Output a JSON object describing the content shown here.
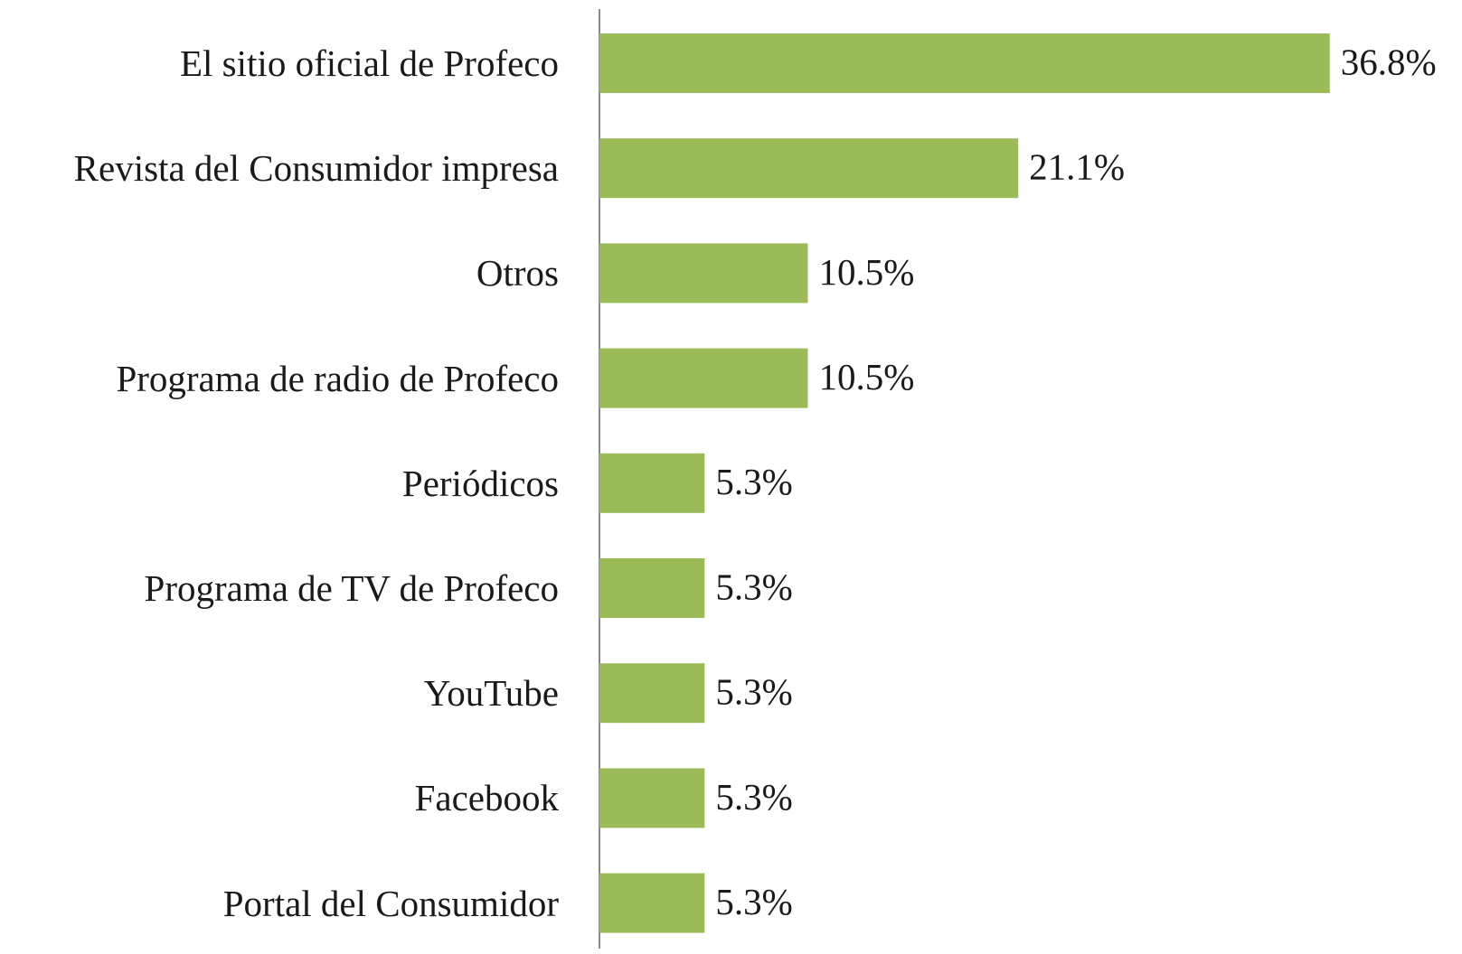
{
  "chart_data": {
    "type": "bar",
    "orientation": "horizontal",
    "categories": [
      "El sitio oficial de Profeco",
      "Revista del Consumidor impresa",
      "Otros",
      "Programa de radio de Profeco",
      "Periódicos",
      "Programa de TV de Profeco",
      "YouTube",
      "Facebook",
      "Portal del Consumidor"
    ],
    "values": [
      36.8,
      21.1,
      10.5,
      10.5,
      5.3,
      5.3,
      5.3,
      5.3,
      5.3
    ],
    "value_labels": [
      "36.8%",
      "21.1%",
      "10.5%",
      "10.5%",
      "5.3%",
      "5.3%",
      "5.3%",
      "5.3%",
      "5.3%"
    ],
    "color": "#9bbb59"
  }
}
